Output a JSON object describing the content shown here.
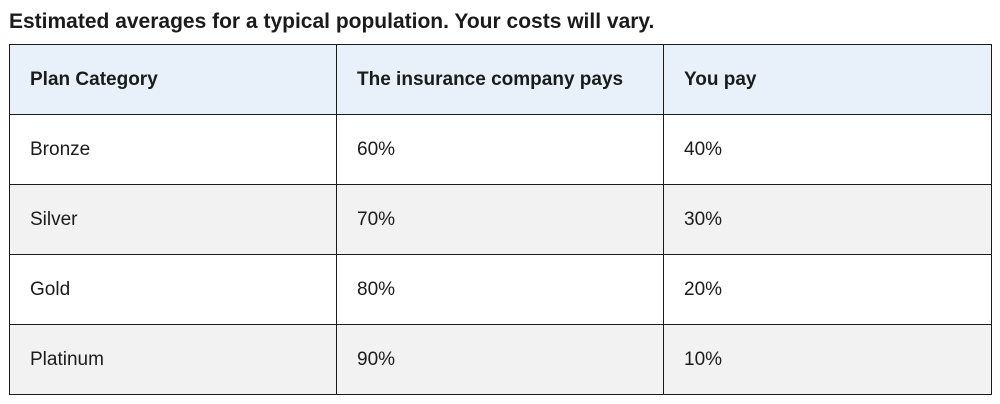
{
  "caption": "Estimated averages for a typical population. Your costs will vary.",
  "table": {
    "headers": [
      "Plan Category",
      "The insurance company pays",
      "You pay"
    ],
    "rows": [
      [
        "Bronze",
        "60%",
        "40%"
      ],
      [
        "Silver",
        "70%",
        "30%"
      ],
      [
        "Gold",
        "80%",
        "20%"
      ],
      [
        "Platinum",
        "90%",
        "10%"
      ]
    ]
  },
  "colors": {
    "header_bg": "#e8f1f9",
    "stripe_bg": "#f2f2f2",
    "border": "#1b1b1b",
    "text": "#1b1b1b"
  }
}
